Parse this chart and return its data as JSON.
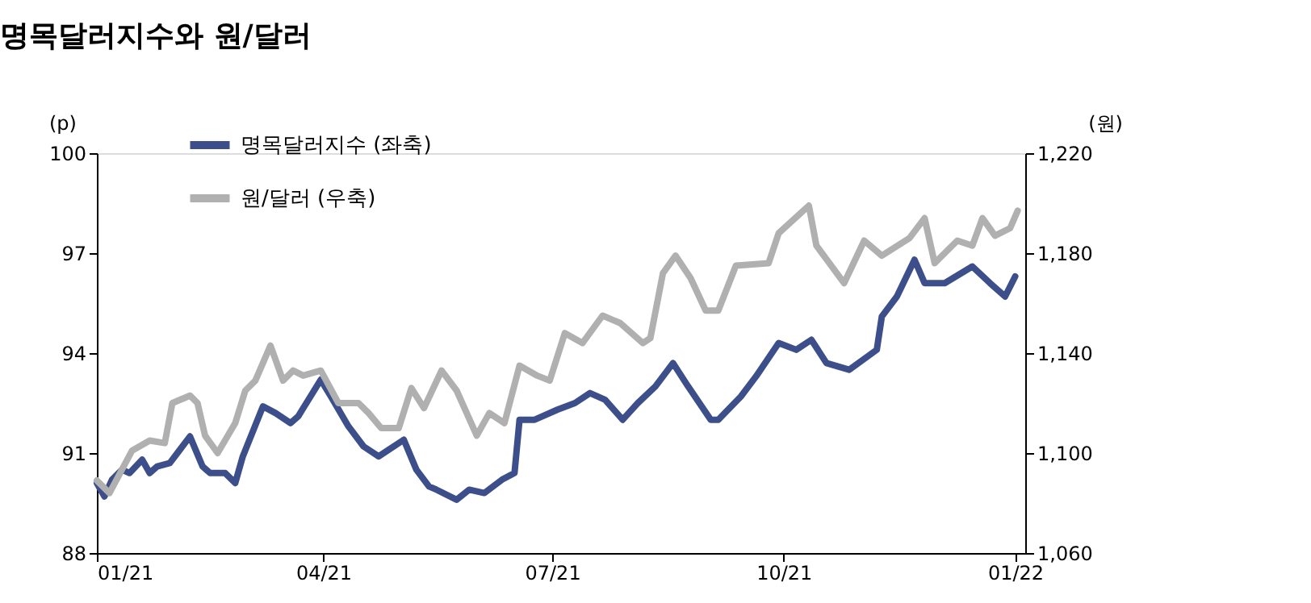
{
  "chart_data": {
    "type": "line",
    "title": "명목달러지수와 원/달러",
    "ylabel": "(p)",
    "y2label": "(원)",
    "xlim": [
      "2021-01-01",
      "2022-01-05"
    ],
    "xticks": [
      {
        "value": "2021-01-01",
        "label": "01/21"
      },
      {
        "value": "2021-04-01",
        "label": "04/21"
      },
      {
        "value": "2021-07-01",
        "label": "07/21"
      },
      {
        "value": "2021-10-01",
        "label": "10/21"
      },
      {
        "value": "2022-01-01",
        "label": "01/22"
      }
    ],
    "ylim": [
      88,
      100
    ],
    "yticks": [
      88,
      91,
      94,
      97,
      100
    ],
    "y2lim": [
      1060,
      1220
    ],
    "y2ticks": [
      {
        "value": 1060,
        "label": "1,060"
      },
      {
        "value": 1100,
        "label": "1,100"
      },
      {
        "value": 1140,
        "label": "1,140"
      },
      {
        "value": 1180,
        "label": "1,180"
      },
      {
        "value": 1220,
        "label": "1,220"
      }
    ],
    "grid": false,
    "legend": "top left",
    "line_style": "solid",
    "marker": "none",
    "series": [
      {
        "name": "명목달러지수 (좌축)",
        "color": "#3d4f8a",
        "axis": "y",
        "x": [
          "2021-01-01",
          "2021-01-04",
          "2021-01-07",
          "2021-01-11",
          "2021-01-14",
          "2021-01-19",
          "2021-01-22",
          "2021-01-25",
          "2021-01-30",
          "2021-02-02",
          "2021-02-07",
          "2021-02-12",
          "2021-02-15",
          "2021-02-21",
          "2021-02-25",
          "2021-02-28",
          "2021-03-08",
          "2021-03-13",
          "2021-03-19",
          "2021-03-22",
          "2021-03-31",
          "2021-04-04",
          "2021-04-11",
          "2021-04-17",
          "2021-04-23",
          "2021-04-27",
          "2021-05-03",
          "2021-05-08",
          "2021-05-13",
          "2021-05-16",
          "2021-05-24",
          "2021-05-29",
          "2021-06-04",
          "2021-06-11",
          "2021-06-16",
          "2021-06-18",
          "2021-06-24",
          "2021-07-03",
          "2021-07-10",
          "2021-07-16",
          "2021-07-22",
          "2021-07-29",
          "2021-08-04",
          "2021-08-11",
          "2021-08-18",
          "2021-08-24",
          "2021-09-02",
          "2021-09-05",
          "2021-09-14",
          "2021-09-20",
          "2021-09-29",
          "2021-10-06",
          "2021-10-12",
          "2021-10-18",
          "2021-10-27",
          "2021-11-07",
          "2021-11-09",
          "2021-11-15",
          "2021-11-22",
          "2021-11-26",
          "2021-12-04",
          "2021-12-15",
          "2021-12-22",
          "2021-12-28",
          "2022-01-01"
        ],
        "values": [
          90.1,
          89.7,
          90.2,
          90.5,
          90.4,
          90.8,
          90.4,
          90.6,
          90.7,
          91.0,
          91.5,
          90.6,
          90.4,
          90.4,
          90.1,
          90.9,
          92.4,
          92.2,
          91.9,
          92.1,
          93.2,
          92.7,
          91.8,
          91.2,
          90.9,
          91.1,
          91.4,
          90.5,
          90.0,
          89.9,
          89.6,
          89.9,
          89.8,
          90.2,
          90.4,
          92.0,
          92.0,
          92.3,
          92.5,
          92.8,
          92.6,
          92.0,
          92.5,
          93.0,
          93.7,
          93.0,
          92.0,
          92.0,
          92.7,
          93.3,
          94.3,
          94.1,
          94.4,
          93.7,
          93.5,
          94.1,
          95.1,
          95.7,
          96.8,
          96.1,
          96.1,
          96.6,
          96.1,
          95.7,
          96.3
        ]
      },
      {
        "name": "원/달러 (우축)",
        "color": "#b0b0b0",
        "axis": "y2",
        "x": [
          "2021-01-01",
          "2021-01-06",
          "2021-01-15",
          "2021-01-22",
          "2021-01-28",
          "2021-01-31",
          "2021-02-07",
          "2021-02-10",
          "2021-02-13",
          "2021-02-18",
          "2021-02-25",
          "2021-03-01",
          "2021-03-05",
          "2021-03-11",
          "2021-03-16",
          "2021-03-20",
          "2021-03-24",
          "2021-03-31",
          "2021-04-07",
          "2021-04-15",
          "2021-04-19",
          "2021-04-24",
          "2021-05-01",
          "2021-05-06",
          "2021-05-11",
          "2021-05-18",
          "2021-05-24",
          "2021-06-01",
          "2021-06-06",
          "2021-06-12",
          "2021-06-18",
          "2021-06-25",
          "2021-06-30",
          "2021-07-06",
          "2021-07-13",
          "2021-07-21",
          "2021-07-28",
          "2021-08-06",
          "2021-08-09",
          "2021-08-14",
          "2021-08-19",
          "2021-08-25",
          "2021-08-31",
          "2021-09-05",
          "2021-09-12",
          "2021-09-25",
          "2021-09-29",
          "2021-10-11",
          "2021-10-14",
          "2021-10-25",
          "2021-11-02",
          "2021-11-09",
          "2021-11-20",
          "2021-11-26",
          "2021-11-30",
          "2021-12-09",
          "2021-12-15",
          "2021-12-19",
          "2021-12-24",
          "2021-12-30",
          "2022-01-02"
        ],
        "values": [
          1089,
          1084,
          1101,
          1105,
          1104,
          1120,
          1123,
          1120,
          1107,
          1100,
          1112,
          1125,
          1129,
          1143,
          1129,
          1133,
          1131,
          1133,
          1120,
          1120,
          1116,
          1110,
          1110,
          1126,
          1118,
          1133,
          1125,
          1107,
          1116,
          1112,
          1135,
          1131,
          1129,
          1148,
          1144,
          1155,
          1152,
          1144,
          1146,
          1172,
          1179,
          1170,
          1157,
          1157,
          1175,
          1176,
          1188,
          1199,
          1183,
          1168,
          1185,
          1179,
          1186,
          1194,
          1176,
          1185,
          1183,
          1194,
          1187,
          1190,
          1197
        ]
      }
    ]
  }
}
